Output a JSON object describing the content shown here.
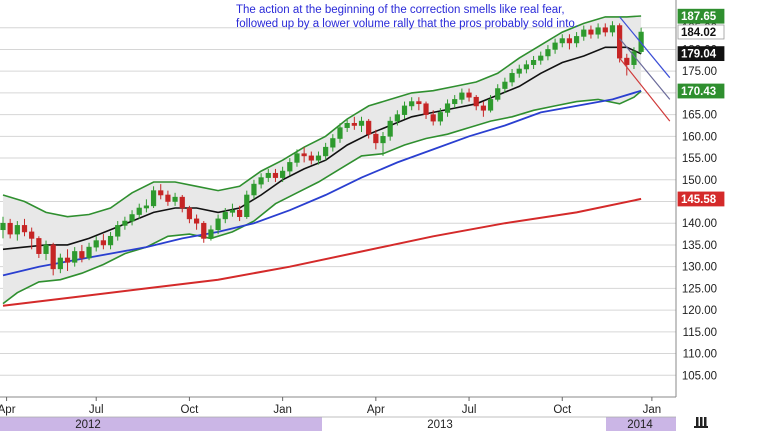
{
  "chart_data": {
    "type": "candlestick",
    "annotation": "The action at the beginning of the correction smells like real fear, followed up by a lower volume rally that the pros probably sold into.",
    "y_axis": {
      "ticks": [
        105,
        110,
        115,
        120,
        125,
        130,
        135,
        140,
        145,
        150,
        155,
        160,
        165,
        170,
        175,
        180,
        185
      ],
      "range": [
        100,
        190
      ],
      "position": "right"
    },
    "x_axis": {
      "month_labels": [
        "Apr",
        "Jul",
        "Oct",
        "Jan",
        "Apr",
        "Jul",
        "Oct",
        "Jan"
      ],
      "year_labels": [
        "2012",
        "2013",
        "2014"
      ]
    },
    "price_tags": [
      {
        "value": 187.65,
        "label": "187.65",
        "style": "green"
      },
      {
        "value": 184.02,
        "label": "184.02",
        "style": "plain"
      },
      {
        "value": 179.04,
        "label": "179.04",
        "style": "black"
      },
      {
        "value": 170.43,
        "label": "170.43",
        "style": "green"
      },
      {
        "value": 145.58,
        "label": "145.58",
        "style": "red"
      }
    ],
    "weeks_total": 95,
    "candles": [
      [
        138.5,
        140.0,
        141.5,
        136.5
      ],
      [
        140.0,
        137.5,
        141.0,
        136.5
      ],
      [
        137.5,
        139.5,
        140.5,
        136.0
      ],
      [
        139.5,
        138.0,
        141.0,
        137.0
      ],
      [
        138.0,
        136.5,
        139.0,
        134.0
      ],
      [
        136.5,
        133.0,
        137.0,
        132.0
      ],
      [
        133.0,
        135.0,
        136.0,
        131.5
      ],
      [
        135.0,
        129.5,
        135.5,
        128.0
      ],
      [
        129.5,
        132.0,
        133.0,
        128.5
      ],
      [
        132.0,
        131.0,
        134.0,
        129.0
      ],
      [
        131.0,
        133.5,
        134.5,
        130.0
      ],
      [
        133.5,
        132.0,
        135.0,
        131.0
      ],
      [
        132.0,
        134.5,
        135.5,
        131.5
      ],
      [
        134.5,
        136.0,
        137.0,
        133.5
      ],
      [
        136.0,
        135.0,
        137.5,
        134.0
      ],
      [
        135.0,
        137.0,
        138.0,
        134.0
      ],
      [
        137.0,
        139.5,
        140.5,
        136.0
      ],
      [
        139.5,
        140.5,
        141.5,
        138.5
      ],
      [
        140.5,
        142.0,
        143.0,
        139.5
      ],
      [
        142.0,
        143.5,
        144.5,
        141.0
      ],
      [
        143.5,
        144.0,
        145.5,
        142.5
      ],
      [
        144.0,
        147.5,
        148.5,
        143.5
      ],
      [
        147.5,
        146.5,
        149.0,
        145.5
      ],
      [
        146.5,
        145.0,
        147.5,
        144.0
      ],
      [
        145.0,
        146.0,
        147.0,
        144.0
      ],
      [
        146.0,
        143.5,
        146.5,
        142.5
      ],
      [
        143.5,
        141.0,
        144.0,
        140.0
      ],
      [
        141.0,
        140.0,
        142.0,
        138.5
      ],
      [
        140.0,
        136.5,
        140.5,
        135.5
      ],
      [
        136.5,
        138.5,
        139.5,
        136.0
      ],
      [
        138.5,
        141.0,
        142.0,
        137.5
      ],
      [
        141.0,
        142.5,
        143.5,
        140.0
      ],
      [
        142.5,
        143.0,
        144.5,
        141.5
      ],
      [
        143.0,
        141.5,
        144.0,
        140.5
      ],
      [
        141.5,
        146.5,
        147.5,
        141.0
      ],
      [
        146.5,
        149.0,
        150.0,
        145.5
      ],
      [
        149.0,
        150.5,
        151.5,
        148.0
      ],
      [
        150.5,
        151.5,
        152.5,
        149.5
      ],
      [
        151.5,
        150.5,
        152.5,
        149.5
      ],
      [
        150.5,
        152.0,
        153.0,
        149.5
      ],
      [
        152.0,
        154.0,
        155.0,
        151.0
      ],
      [
        154.0,
        156.0,
        157.0,
        153.0
      ],
      [
        156.0,
        155.5,
        157.5,
        154.0
      ],
      [
        155.5,
        154.5,
        156.5,
        153.5
      ],
      [
        154.5,
        155.5,
        156.5,
        153.5
      ],
      [
        155.5,
        157.5,
        158.5,
        154.5
      ],
      [
        157.5,
        159.5,
        160.5,
        156.5
      ],
      [
        159.5,
        162.0,
        163.0,
        158.5
      ],
      [
        162.0,
        163.0,
        164.0,
        161.0
      ],
      [
        163.0,
        162.5,
        164.5,
        161.5
      ],
      [
        162.5,
        163.5,
        164.5,
        161.0
      ],
      [
        163.5,
        160.5,
        164.0,
        159.5
      ],
      [
        160.5,
        158.5,
        161.5,
        157.0
      ],
      [
        158.5,
        160.0,
        161.0,
        155.5
      ],
      [
        160.0,
        163.5,
        164.5,
        159.0
      ],
      [
        163.5,
        165.0,
        166.0,
        162.5
      ],
      [
        165.0,
        167.0,
        168.0,
        164.0
      ],
      [
        167.0,
        168.0,
        169.0,
        166.0
      ],
      [
        168.0,
        167.5,
        169.0,
        166.0
      ],
      [
        167.5,
        165.0,
        168.0,
        164.0
      ],
      [
        165.0,
        163.5,
        166.0,
        162.5
      ],
      [
        163.5,
        165.5,
        166.5,
        162.5
      ],
      [
        165.5,
        167.5,
        168.5,
        164.5
      ],
      [
        167.5,
        168.5,
        169.5,
        166.5
      ],
      [
        168.5,
        170.0,
        171.0,
        167.5
      ],
      [
        170.0,
        169.0,
        171.0,
        168.0
      ],
      [
        169.0,
        167.0,
        169.5,
        166.0
      ],
      [
        167.0,
        166.0,
        168.0,
        164.5
      ],
      [
        166.0,
        168.5,
        169.5,
        165.5
      ],
      [
        168.5,
        171.0,
        172.0,
        168.0
      ],
      [
        171.0,
        172.5,
        173.5,
        170.0
      ],
      [
        172.5,
        174.5,
        175.5,
        171.5
      ],
      [
        174.5,
        175.5,
        176.5,
        173.5
      ],
      [
        175.5,
        176.5,
        177.5,
        174.5
      ],
      [
        176.5,
        177.5,
        178.5,
        175.5
      ],
      [
        177.5,
        178.5,
        179.5,
        176.5
      ],
      [
        178.5,
        180.0,
        181.0,
        177.5
      ],
      [
        180.0,
        181.5,
        182.5,
        179.0
      ],
      [
        181.5,
        182.5,
        183.5,
        180.5
      ],
      [
        182.5,
        181.5,
        183.5,
        180.0
      ],
      [
        181.5,
        183.0,
        184.0,
        180.5
      ],
      [
        183.0,
        184.5,
        185.5,
        182.0
      ],
      [
        184.5,
        183.5,
        185.5,
        182.5
      ],
      [
        183.5,
        185.0,
        186.0,
        182.5
      ],
      [
        185.0,
        184.0,
        186.0,
        183.0
      ],
      [
        184.0,
        185.5,
        186.5,
        183.0
      ],
      [
        185.5,
        178.0,
        186.0,
        177.0
      ],
      [
        178.0,
        176.5,
        179.0,
        174.0
      ],
      [
        176.5,
        179.5,
        180.5,
        175.5
      ],
      [
        179.5,
        184.0,
        185.0,
        179.0
      ]
    ],
    "bollinger_upper": [
      [
        0,
        146.5
      ],
      [
        3,
        145.0
      ],
      [
        6,
        142.5
      ],
      [
        9,
        141.5
      ],
      [
        12,
        142.0
      ],
      [
        15,
        143.5
      ],
      [
        18,
        147.0
      ],
      [
        21,
        149.5
      ],
      [
        24,
        149.5
      ],
      [
        27,
        148.5
      ],
      [
        30,
        147.5
      ],
      [
        33,
        148.5
      ],
      [
        36,
        152.0
      ],
      [
        39,
        154.5
      ],
      [
        42,
        157.5
      ],
      [
        45,
        160.0
      ],
      [
        48,
        164.0
      ],
      [
        51,
        167.0
      ],
      [
        54,
        168.5
      ],
      [
        57,
        170.0
      ],
      [
        60,
        170.5
      ],
      [
        63,
        171.5
      ],
      [
        66,
        172.5
      ],
      [
        69,
        174.5
      ],
      [
        72,
        178.0
      ],
      [
        75,
        181.0
      ],
      [
        78,
        184.0
      ],
      [
        81,
        186.0
      ],
      [
        84,
        187.5
      ],
      [
        87,
        187.5
      ],
      [
        89,
        187.7
      ]
    ],
    "bollinger_lower": [
      [
        0,
        121.5
      ],
      [
        2,
        124.0
      ],
      [
        5,
        126.5
      ],
      [
        8,
        127.0
      ],
      [
        11,
        128.5
      ],
      [
        14,
        130.5
      ],
      [
        17,
        133.0
      ],
      [
        20,
        134.5
      ],
      [
        23,
        137.0
      ],
      [
        26,
        137.5
      ],
      [
        29,
        136.5
      ],
      [
        32,
        138.0
      ],
      [
        35,
        140.5
      ],
      [
        38,
        144.5
      ],
      [
        41,
        147.0
      ],
      [
        44,
        149.5
      ],
      [
        47,
        152.5
      ],
      [
        50,
        155.5
      ],
      [
        53,
        156.0
      ],
      [
        56,
        158.0
      ],
      [
        59,
        159.5
      ],
      [
        62,
        160.5
      ],
      [
        65,
        162.0
      ],
      [
        68,
        163.5
      ],
      [
        71,
        164.5
      ],
      [
        74,
        166.0
      ],
      [
        77,
        167.0
      ],
      [
        80,
        168.0
      ],
      [
        83,
        168.5
      ],
      [
        86,
        167.5
      ],
      [
        88,
        169.0
      ],
      [
        89,
        170.4
      ]
    ],
    "sma_short": [
      [
        0,
        134.0
      ],
      [
        3,
        134.5
      ],
      [
        6,
        135.0
      ],
      [
        9,
        135.0
      ],
      [
        12,
        136.5
      ],
      [
        15,
        138.5
      ],
      [
        18,
        140.5
      ],
      [
        21,
        142.5
      ],
      [
        24,
        143.5
      ],
      [
        27,
        143.5
      ],
      [
        30,
        142.5
      ],
      [
        33,
        143.5
      ],
      [
        36,
        146.5
      ],
      [
        39,
        150.0
      ],
      [
        42,
        152.5
      ],
      [
        45,
        154.5
      ],
      [
        48,
        158.0
      ],
      [
        51,
        160.5
      ],
      [
        54,
        162.5
      ],
      [
        57,
        164.5
      ],
      [
        60,
        165.5
      ],
      [
        63,
        166.5
      ],
      [
        66,
        167.5
      ],
      [
        69,
        169.5
      ],
      [
        72,
        171.5
      ],
      [
        75,
        174.5
      ],
      [
        78,
        177.0
      ],
      [
        81,
        178.5
      ],
      [
        84,
        180.5
      ],
      [
        87,
        180.5
      ],
      [
        89,
        179.0
      ]
    ],
    "sma_mid": [
      [
        0,
        128.0
      ],
      [
        5,
        130.0
      ],
      [
        10,
        131.5
      ],
      [
        15,
        133.0
      ],
      [
        20,
        134.5
      ],
      [
        25,
        136.5
      ],
      [
        30,
        138.0
      ],
      [
        35,
        140.0
      ],
      [
        40,
        143.0
      ],
      [
        45,
        146.5
      ],
      [
        50,
        150.5
      ],
      [
        55,
        154.0
      ],
      [
        60,
        157.0
      ],
      [
        65,
        160.0
      ],
      [
        70,
        162.5
      ],
      [
        75,
        165.5
      ],
      [
        80,
        167.0
      ],
      [
        85,
        168.5
      ],
      [
        89,
        170.5
      ]
    ],
    "sma_long": [
      [
        0,
        121.0
      ],
      [
        10,
        123.0
      ],
      [
        20,
        125.0
      ],
      [
        30,
        127.0
      ],
      [
        40,
        130.0
      ],
      [
        50,
        133.5
      ],
      [
        60,
        137.0
      ],
      [
        70,
        140.0
      ],
      [
        80,
        142.5
      ],
      [
        89,
        145.6
      ]
    ],
    "trend_lines": [
      {
        "color": "#3d4fd6",
        "points": [
          [
            86,
            187.5
          ],
          [
            93,
            173.5
          ]
        ]
      },
      {
        "color": "#6a6a9a",
        "points": [
          [
            86,
            182.5
          ],
          [
            93,
            168.5
          ]
        ]
      },
      {
        "color": "#d03a3a",
        "points": [
          [
            86,
            178.0
          ],
          [
            93,
            163.5
          ]
        ]
      }
    ],
    "colors": {
      "up": "#2e9a2e",
      "down": "#c62525",
      "band": "#2f8f2f",
      "band_fill": "#e8e8e8",
      "sma_short": "#111111",
      "sma_mid": "#2a3fd0",
      "sma_long": "#d42a2a",
      "year_bar": "#cbb6e6",
      "grid": "#d6d6d6"
    }
  }
}
